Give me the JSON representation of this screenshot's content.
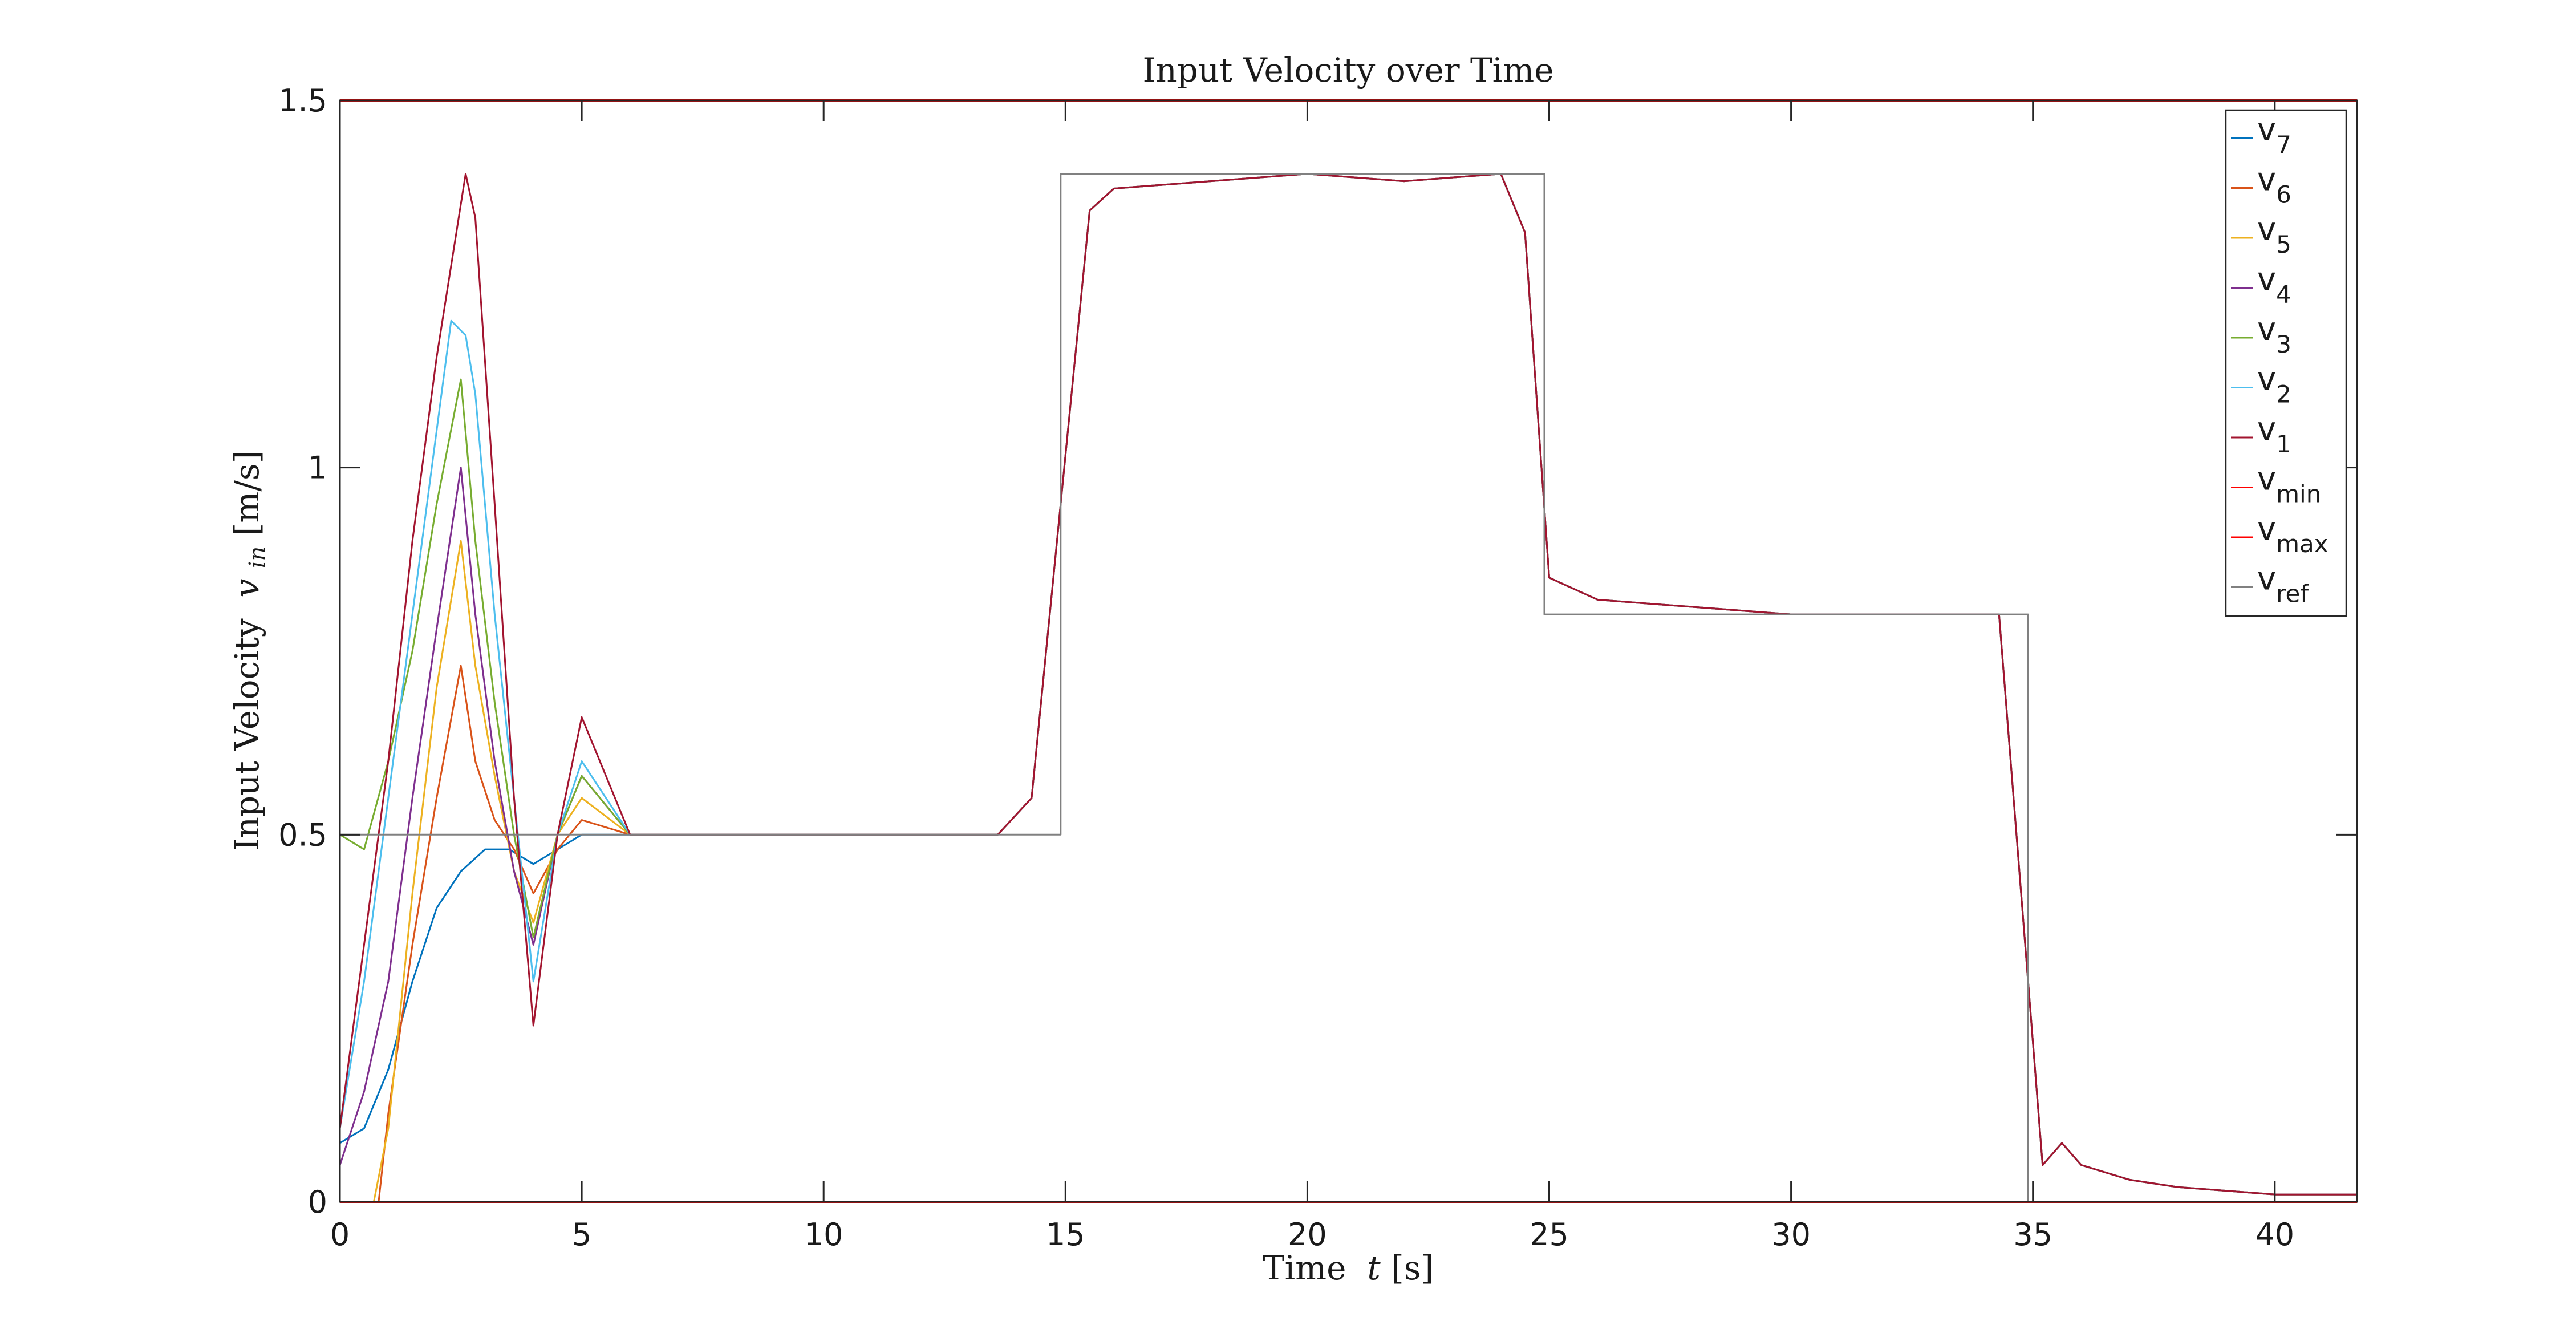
{
  "chart_data": {
    "type": "line",
    "title": "Input Velocity over Time",
    "xlabel": "Time t [s]",
    "ylabel": "Input Velocity v_in [m/s]",
    "xlabel_parts": {
      "prefix": "Time ",
      "var": "t",
      "unit": "[s]"
    },
    "ylabel_parts": {
      "prefix": "Input Velocity ",
      "var": "v",
      "sub": "in",
      "unit": "[m/s]"
    },
    "xlim": [
      0,
      41.7
    ],
    "ylim": [
      0,
      1.5
    ],
    "xticks": [
      "0",
      "5",
      "10",
      "15",
      "20",
      "25",
      "30",
      "35",
      "40"
    ],
    "yticks": [
      "0",
      "0.5",
      "1",
      "1.5"
    ],
    "grid": false,
    "legend_position": "top-right",
    "series": [
      {
        "name": "v7",
        "sym": "v",
        "sub": "7",
        "color": "#0072BD",
        "x": [
          0,
          0.5,
          1,
          1.5,
          2,
          2.5,
          3,
          3.5,
          4,
          4.5,
          5,
          6,
          8,
          10,
          12,
          13.6,
          14.3,
          15.5,
          16,
          18,
          20,
          22,
          24,
          24.5,
          25,
          26,
          28,
          30,
          32,
          34,
          34.3,
          35.2,
          35.6,
          36,
          37,
          38,
          40,
          41.7
        ],
        "y": [
          0.08,
          0.1,
          0.18,
          0.3,
          0.4,
          0.45,
          0.48,
          0.48,
          0.46,
          0.48,
          0.5,
          0.5,
          0.5,
          0.5,
          0.5,
          0.5,
          0.55,
          1.35,
          1.38,
          1.39,
          1.4,
          1.39,
          1.4,
          1.32,
          0.85,
          0.82,
          0.81,
          0.8,
          0.8,
          0.8,
          0.8,
          0.05,
          0.08,
          0.05,
          0.03,
          0.02,
          0.01,
          0.01
        ]
      },
      {
        "name": "v6",
        "sym": "v",
        "sub": "6",
        "color": "#D95319",
        "x": [
          0,
          0.5,
          0.8,
          1,
          1.5,
          2,
          2.5,
          2.8,
          3.2,
          3.6,
          4,
          4.5,
          5,
          6,
          8,
          10,
          12,
          13.6,
          14.3,
          15.5,
          16,
          18,
          20,
          22,
          24,
          24.5,
          25,
          26,
          28,
          30,
          32,
          34,
          34.3,
          35.2,
          35.6,
          36,
          37,
          38,
          40,
          41.7
        ],
        "y": [
          0,
          0,
          0,
          0.12,
          0.35,
          0.55,
          0.73,
          0.6,
          0.52,
          0.48,
          0.42,
          0.48,
          0.52,
          0.5,
          0.5,
          0.5,
          0.5,
          0.5,
          0.55,
          1.35,
          1.38,
          1.39,
          1.4,
          1.39,
          1.4,
          1.32,
          0.85,
          0.82,
          0.81,
          0.8,
          0.8,
          0.8,
          0.8,
          0.05,
          0.08,
          0.05,
          0.03,
          0.02,
          0.01,
          0.01
        ]
      },
      {
        "name": "v5",
        "sym": "v",
        "sub": "5",
        "color": "#EDB120",
        "x": [
          0,
          0.7,
          1,
          1.5,
          2,
          2.5,
          2.8,
          3.2,
          3.6,
          4,
          4.5,
          5,
          6,
          8,
          10,
          12,
          13.6,
          14.3,
          15.5,
          16,
          18,
          20,
          22,
          24,
          24.5,
          25,
          26,
          28,
          30,
          32,
          34,
          34.3,
          35.2,
          35.6,
          36,
          37,
          38,
          40,
          41.7
        ],
        "y": [
          0,
          0,
          0.1,
          0.42,
          0.7,
          0.9,
          0.73,
          0.58,
          0.45,
          0.38,
          0.5,
          0.55,
          0.5,
          0.5,
          0.5,
          0.5,
          0.5,
          0.55,
          1.35,
          1.38,
          1.39,
          1.4,
          1.39,
          1.4,
          1.32,
          0.85,
          0.82,
          0.81,
          0.8,
          0.8,
          0.8,
          0.8,
          0.05,
          0.08,
          0.05,
          0.03,
          0.02,
          0.01,
          0.01
        ]
      },
      {
        "name": "v4",
        "sym": "v",
        "sub": "4",
        "color": "#7E2F8E",
        "x": [
          0,
          0.5,
          1,
          1.5,
          2,
          2.5,
          2.8,
          3.2,
          3.6,
          4,
          4.5,
          5,
          6,
          8,
          10,
          12,
          13.6,
          14.3,
          15.5,
          16,
          18,
          20,
          22,
          24,
          24.5,
          25,
          26,
          28,
          30,
          32,
          34,
          34.3,
          35.2,
          35.6,
          36,
          37,
          38,
          40,
          41.7
        ],
        "y": [
          0.05,
          0.15,
          0.3,
          0.55,
          0.78,
          1.0,
          0.8,
          0.6,
          0.45,
          0.35,
          0.5,
          0.58,
          0.5,
          0.5,
          0.5,
          0.5,
          0.5,
          0.55,
          1.35,
          1.38,
          1.39,
          1.4,
          1.39,
          1.4,
          1.32,
          0.85,
          0.82,
          0.81,
          0.8,
          0.8,
          0.8,
          0.8,
          0.05,
          0.08,
          0.05,
          0.03,
          0.02,
          0.01,
          0.01
        ]
      },
      {
        "name": "v3",
        "sym": "v",
        "sub": "3",
        "color": "#77AC30",
        "x": [
          0,
          0.5,
          1,
          1.5,
          2,
          2.5,
          2.8,
          3.2,
          3.6,
          4,
          4.5,
          5,
          6,
          8,
          10,
          12,
          13.6,
          14.3,
          15.5,
          16,
          18,
          20,
          22,
          24,
          24.5,
          25,
          26,
          28,
          30,
          32,
          34,
          34.3,
          35.2,
          35.6,
          36,
          37,
          38,
          40,
          41.7
        ],
        "y": [
          0.5,
          0.48,
          0.6,
          0.75,
          0.95,
          1.12,
          0.9,
          0.68,
          0.5,
          0.36,
          0.5,
          0.58,
          0.5,
          0.5,
          0.5,
          0.5,
          0.5,
          0.55,
          1.35,
          1.38,
          1.39,
          1.4,
          1.39,
          1.4,
          1.32,
          0.85,
          0.82,
          0.81,
          0.8,
          0.8,
          0.8,
          0.8,
          0.05,
          0.08,
          0.05,
          0.03,
          0.02,
          0.01,
          0.01
        ]
      },
      {
        "name": "v2",
        "sym": "v",
        "sub": "2",
        "color": "#4DBEEE",
        "x": [
          0,
          0.5,
          1,
          1.5,
          2,
          2.3,
          2.6,
          2.8,
          3.2,
          3.6,
          4,
          4.5,
          5,
          6,
          8,
          10,
          12,
          13.6,
          14.3,
          15.5,
          16,
          18,
          20,
          22,
          24,
          24.5,
          25,
          26,
          28,
          30,
          32,
          34,
          34.3,
          35.2,
          35.6,
          36,
          37,
          38,
          40,
          41.7
        ],
        "y": [
          0.1,
          0.3,
          0.55,
          0.8,
          1.05,
          1.2,
          1.18,
          1.1,
          0.8,
          0.55,
          0.3,
          0.5,
          0.6,
          0.5,
          0.5,
          0.5,
          0.5,
          0.5,
          0.55,
          1.35,
          1.38,
          1.39,
          1.4,
          1.39,
          1.4,
          1.32,
          0.85,
          0.82,
          0.81,
          0.8,
          0.8,
          0.8,
          0.8,
          0.05,
          0.08,
          0.05,
          0.03,
          0.02,
          0.01,
          0.01
        ]
      },
      {
        "name": "v1",
        "sym": "v",
        "sub": "1",
        "color": "#A2142F",
        "x": [
          0,
          0.5,
          1,
          1.5,
          2,
          2.6,
          2.8,
          3.2,
          3.6,
          4,
          4.5,
          5,
          6,
          8,
          10,
          12,
          13.6,
          14.3,
          15.5,
          16,
          18,
          20,
          22,
          24,
          24.5,
          25,
          26,
          28,
          30,
          32,
          34,
          34.3,
          35.2,
          35.6,
          36,
          37,
          38,
          40,
          41.7
        ],
        "y": [
          0.1,
          0.35,
          0.6,
          0.9,
          1.15,
          1.4,
          1.34,
          0.95,
          0.55,
          0.24,
          0.5,
          0.66,
          0.5,
          0.5,
          0.5,
          0.5,
          0.5,
          0.55,
          1.35,
          1.38,
          1.39,
          1.4,
          1.39,
          1.4,
          1.32,
          0.85,
          0.82,
          0.81,
          0.8,
          0.8,
          0.8,
          0.8,
          0.05,
          0.08,
          0.05,
          0.03,
          0.02,
          0.01,
          0.01
        ]
      },
      {
        "name": "vmin",
        "sym": "v",
        "sub": "min",
        "color": "#FF0000",
        "x": [
          0,
          41.7
        ],
        "y": [
          0,
          0
        ]
      },
      {
        "name": "vmax",
        "sym": "v",
        "sub": "max",
        "color": "#FF0000",
        "x": [
          0,
          41.7
        ],
        "y": [
          1.5,
          1.5
        ]
      },
      {
        "name": "vref",
        "sym": "v",
        "sub": "ref",
        "color": "#808080",
        "x": [
          0,
          14.9,
          14.9,
          24.9,
          24.9,
          34.9,
          34.9,
          41.7
        ],
        "y": [
          0.5,
          0.5,
          1.4,
          1.4,
          0.8,
          0.8,
          0,
          0
        ]
      }
    ]
  }
}
